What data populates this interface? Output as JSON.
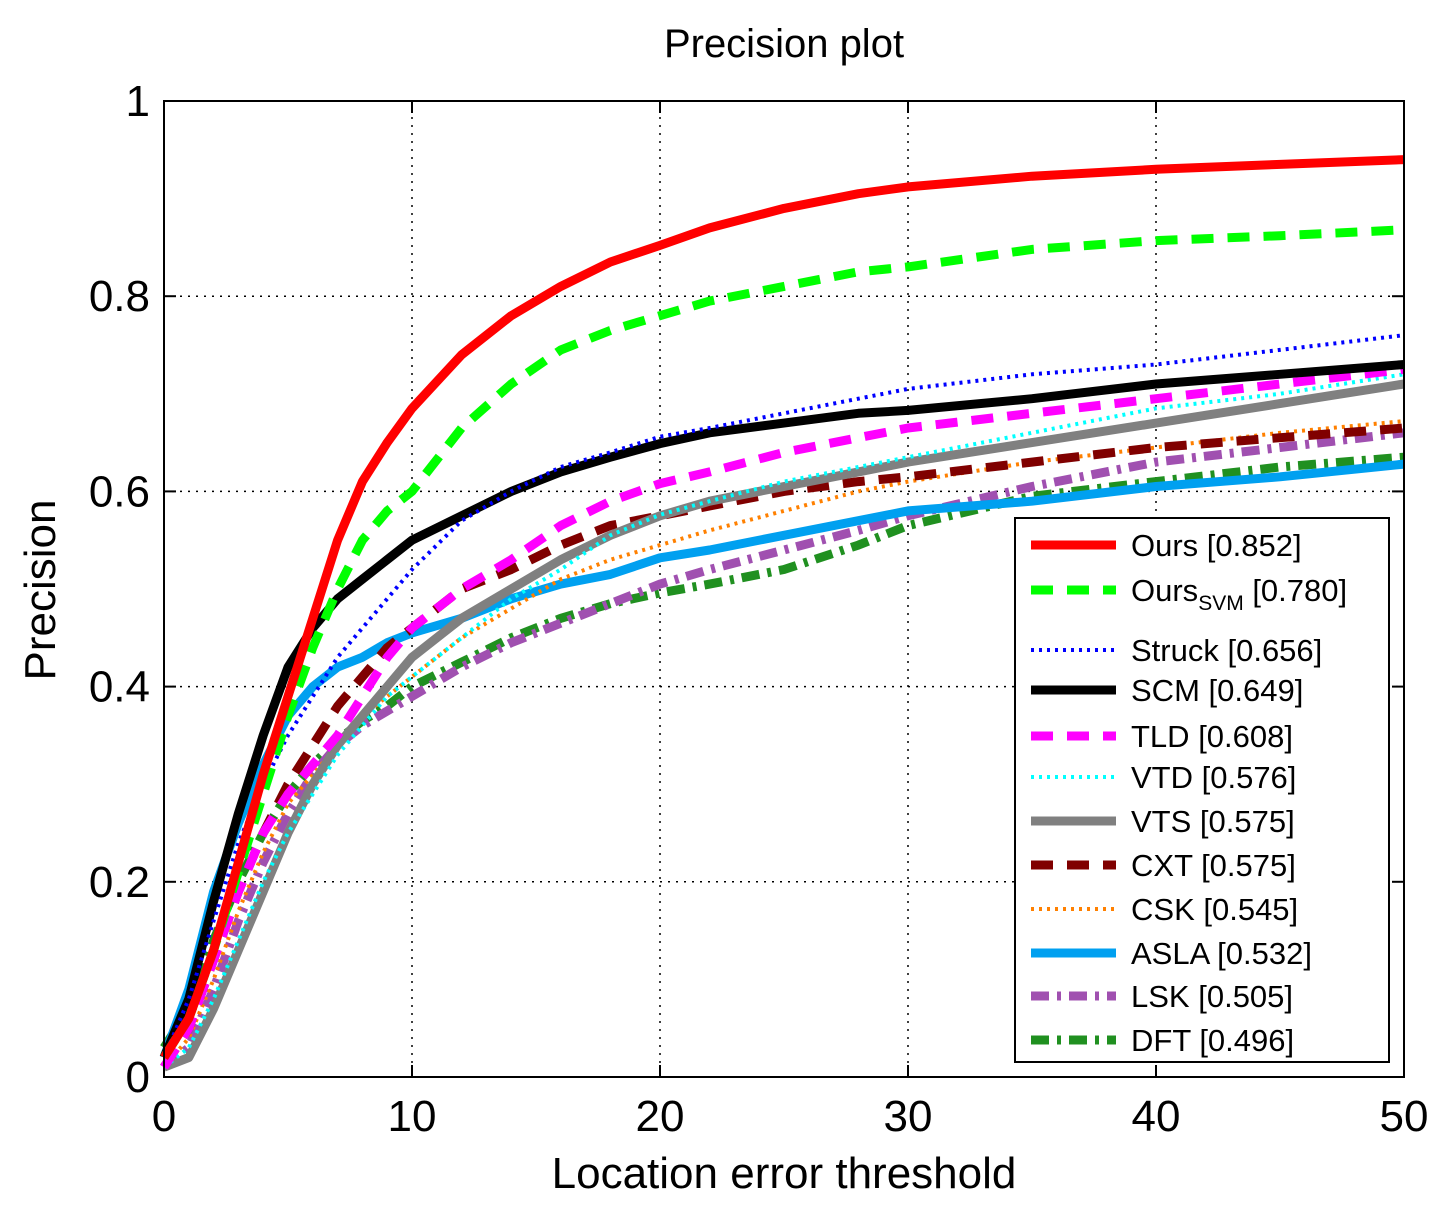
{
  "chart_data": {
    "type": "line",
    "title": "Precision plot",
    "xlabel": "Location error threshold",
    "ylabel": "Precision",
    "xlim": [
      0,
      50
    ],
    "ylim": [
      0,
      1
    ],
    "xticks": [
      0,
      10,
      20,
      30,
      40,
      50
    ],
    "yticks": [
      0,
      0.2,
      0.4,
      0.6,
      0.8,
      1
    ],
    "xtick_labels": [
      "0",
      "10",
      "20",
      "30",
      "40",
      "50"
    ],
    "ytick_labels": [
      "0",
      "0.2",
      "0.4",
      "0.6",
      "0.8",
      "1"
    ],
    "grid": true,
    "grid_style": "dotted",
    "legend_position": "lower-right",
    "x": [
      0,
      1,
      2,
      3,
      4,
      5,
      6,
      7,
      8,
      9,
      10,
      12,
      14,
      16,
      18,
      20,
      22,
      25,
      28,
      30,
      35,
      40,
      45,
      50
    ],
    "series": [
      {
        "name": "Ours",
        "score": "[0.852]",
        "color": "#ff0000",
        "style": "solid",
        "width": 9,
        "values": [
          0.02,
          0.06,
          0.13,
          0.22,
          0.31,
          0.39,
          0.47,
          0.55,
          0.61,
          0.65,
          0.685,
          0.74,
          0.78,
          0.81,
          0.835,
          0.852,
          0.87,
          0.89,
          0.905,
          0.912,
          0.923,
          0.93,
          0.935,
          0.94
        ]
      },
      {
        "name": "Ours",
        "subscript": "SVM",
        "score": "[0.780]",
        "color": "#00ff00",
        "style": "dashed",
        "width": 9,
        "values": [
          0.02,
          0.06,
          0.13,
          0.21,
          0.29,
          0.37,
          0.44,
          0.5,
          0.55,
          0.58,
          0.6,
          0.665,
          0.71,
          0.745,
          0.765,
          0.78,
          0.795,
          0.81,
          0.825,
          0.83,
          0.848,
          0.857,
          0.862,
          0.868
        ]
      },
      {
        "name": "Struck",
        "score": "[0.656]",
        "color": "#0000ff",
        "style": "dotted",
        "width": 4,
        "values": [
          0.02,
          0.08,
          0.16,
          0.24,
          0.3,
          0.35,
          0.39,
          0.43,
          0.46,
          0.49,
          0.52,
          0.57,
          0.6,
          0.625,
          0.64,
          0.656,
          0.665,
          0.68,
          0.695,
          0.705,
          0.72,
          0.73,
          0.745,
          0.76
        ]
      },
      {
        "name": "SCM",
        "score": "[0.649]",
        "color": "#000000",
        "style": "solid",
        "width": 9,
        "values": [
          0.02,
          0.08,
          0.18,
          0.27,
          0.35,
          0.42,
          0.46,
          0.49,
          0.51,
          0.53,
          0.55,
          0.575,
          0.6,
          0.62,
          0.635,
          0.649,
          0.66,
          0.67,
          0.68,
          0.683,
          0.695,
          0.71,
          0.72,
          0.73
        ]
      },
      {
        "name": "TLD",
        "score": "[0.608]",
        "color": "#ff00ff",
        "style": "dashed",
        "width": 9,
        "values": [
          0.01,
          0.05,
          0.12,
          0.19,
          0.25,
          0.29,
          0.32,
          0.35,
          0.39,
          0.43,
          0.46,
          0.5,
          0.53,
          0.565,
          0.59,
          0.608,
          0.62,
          0.64,
          0.655,
          0.665,
          0.68,
          0.695,
          0.71,
          0.725
        ]
      },
      {
        "name": "VTD",
        "score": "[0.576]",
        "color": "#00ffff",
        "style": "dotted",
        "width": 4,
        "values": [
          0.01,
          0.03,
          0.08,
          0.14,
          0.2,
          0.25,
          0.29,
          0.33,
          0.36,
          0.39,
          0.41,
          0.45,
          0.49,
          0.52,
          0.555,
          0.576,
          0.59,
          0.61,
          0.625,
          0.635,
          0.66,
          0.685,
          0.7,
          0.72
        ]
      },
      {
        "name": "VTS",
        "score": "[0.575]",
        "color": "#808080",
        "style": "solid",
        "width": 9,
        "values": [
          0.01,
          0.02,
          0.07,
          0.13,
          0.19,
          0.25,
          0.3,
          0.34,
          0.37,
          0.4,
          0.43,
          0.47,
          0.5,
          0.53,
          0.555,
          0.575,
          0.59,
          0.605,
          0.62,
          0.63,
          0.65,
          0.67,
          0.69,
          0.71
        ]
      },
      {
        "name": "CXT",
        "score": "[0.575]",
        "color": "#800000",
        "style": "dashed",
        "width": 9,
        "values": [
          0.01,
          0.05,
          0.12,
          0.19,
          0.25,
          0.3,
          0.34,
          0.38,
          0.41,
          0.44,
          0.46,
          0.5,
          0.52,
          0.545,
          0.565,
          0.575,
          0.585,
          0.6,
          0.61,
          0.615,
          0.63,
          0.645,
          0.655,
          0.665
        ]
      },
      {
        "name": "CSK",
        "score": "[0.545]",
        "color": "#ff8000",
        "style": "dotted",
        "width": 4,
        "values": [
          0.01,
          0.04,
          0.1,
          0.17,
          0.23,
          0.28,
          0.31,
          0.34,
          0.37,
          0.39,
          0.41,
          0.45,
          0.48,
          0.51,
          0.53,
          0.545,
          0.56,
          0.58,
          0.6,
          0.61,
          0.63,
          0.645,
          0.66,
          0.672
        ]
      },
      {
        "name": "ASLA",
        "score": "[0.532]",
        "color": "#00a0f0",
        "style": "solid",
        "width": 9,
        "values": [
          0.02,
          0.09,
          0.19,
          0.26,
          0.32,
          0.37,
          0.4,
          0.42,
          0.43,
          0.445,
          0.455,
          0.47,
          0.49,
          0.505,
          0.515,
          0.532,
          0.54,
          0.555,
          0.57,
          0.58,
          0.59,
          0.605,
          0.615,
          0.628
        ]
      },
      {
        "name": "LSK",
        "score": "[0.505]",
        "color": "#a050b0",
        "style": "dashdot",
        "width": 9,
        "values": [
          0.01,
          0.03,
          0.09,
          0.16,
          0.22,
          0.27,
          0.31,
          0.34,
          0.36,
          0.375,
          0.39,
          0.42,
          0.445,
          0.465,
          0.485,
          0.505,
          0.52,
          0.54,
          0.56,
          0.575,
          0.605,
          0.63,
          0.645,
          0.66
        ]
      },
      {
        "name": "DFT",
        "score": "[0.496]",
        "color": "#209020",
        "style": "dashdot",
        "width": 9,
        "values": [
          0.03,
          0.07,
          0.14,
          0.2,
          0.25,
          0.29,
          0.32,
          0.345,
          0.365,
          0.38,
          0.4,
          0.425,
          0.45,
          0.47,
          0.485,
          0.496,
          0.505,
          0.52,
          0.545,
          0.565,
          0.595,
          0.61,
          0.625,
          0.635
        ]
      }
    ]
  }
}
